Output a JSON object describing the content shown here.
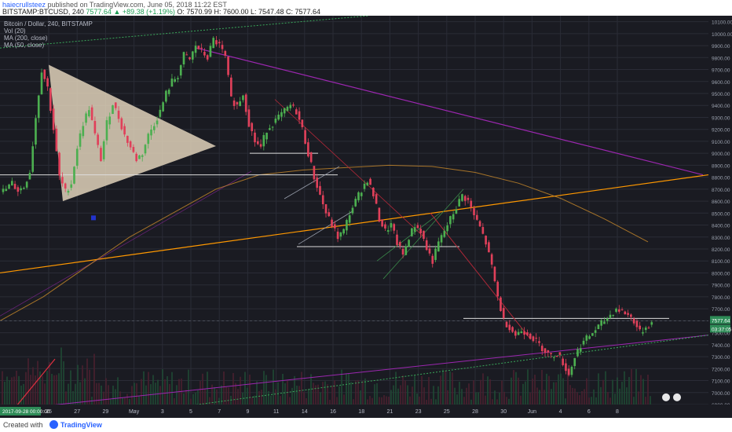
{
  "header": {
    "author": "haiecrullsteez",
    "published": " published on TradingView.com, June 05, 2018 11:22 EST",
    "symbol": "BITSTAMP:BTCUSD, 240",
    "last": "7577.64",
    "change": "▲ +89.38 (+1.19%)",
    "ohlc": "O: 7570.99 H: 7600.00 L: 7547.48 C: 7577.64"
  },
  "legend": {
    "title": "Bitcoin / Dollar, 240, BITSTAMP",
    "items": [
      "Vol (20)",
      "MA (200, close)",
      "MA (50, close)"
    ]
  },
  "footer": {
    "created": "Created with",
    "brand": "TradingView"
  },
  "price_tags": {
    "last": "7577.64",
    "timer": "03:37:05"
  },
  "time_tag": "2017-09-28 00:00:00",
  "colors": {
    "background": "#1a1b22",
    "up": "#4caf50",
    "down": "#e0405a",
    "ma200": "#c9892a",
    "trendline": "#ff9800",
    "purple": "#9c27b0",
    "green_dotted": "#3aa85a",
    "triangle": "#e8d9c0"
  },
  "chart_data": {
    "type": "candlestick",
    "title": "Bitcoin / Dollar, 240, BITSTAMP",
    "ylim": [
      6900,
      10150
    ],
    "y_ticks": [
      6900,
      7000,
      7100,
      7200,
      7300,
      7400,
      7500,
      7600,
      7700,
      7800,
      7900,
      8000,
      8100,
      8200,
      8300,
      8400,
      8500,
      8600,
      8700,
      8800,
      8900,
      9000,
      9100,
      9200,
      9300,
      9400,
      9500,
      9600,
      9700,
      9800,
      9900,
      10000,
      10100
    ],
    "x_ticks": [
      "25",
      "27",
      "29",
      "May",
      "3",
      "5",
      "7",
      "9",
      "11",
      "14",
      "16",
      "18",
      "21",
      "23",
      "25",
      "28",
      "30",
      "Jun",
      "4",
      "6",
      "8"
    ],
    "close_path": [
      8700,
      8750,
      8690,
      8720,
      8850,
      9300,
      9700,
      9550,
      9200,
      8800,
      8680,
      8750,
      9050,
      9250,
      9380,
      9150,
      8950,
      9250,
      9420,
      9300,
      9150,
      9050,
      8950,
      9000,
      9150,
      9250,
      9350,
      9500,
      9600,
      9650,
      9820,
      9780,
      9900,
      9850,
      9800,
      9950,
      9900,
      9800,
      9450,
      9400,
      9500,
      9250,
      9100,
      9050,
      9200,
      9250,
      9300,
      9350,
      9400,
      9350,
      9200,
      9000,
      8800,
      8650,
      8500,
      8400,
      8300,
      8350,
      8500,
      8600,
      8700,
      8780,
      8650,
      8450,
      8350,
      8400,
      8250,
      8150,
      8300,
      8400,
      8350,
      8200,
      8100,
      8250,
      8350,
      8450,
      8550,
      8650,
      8600,
      8480,
      8380,
      8250,
      8050,
      7800,
      7600,
      7550,
      7480,
      7520,
      7500,
      7450,
      7400,
      7350,
      7300,
      7330,
      7250,
      7150,
      7300,
      7400,
      7450,
      7500,
      7550,
      7600,
      7650,
      7700,
      7680,
      7650,
      7600,
      7500,
      7550,
      7578
    ],
    "horizontal_levels": [
      8820,
      9000,
      8220,
      7620
    ],
    "annotations": [
      "symmetrical triangle",
      "ascending channel",
      "descending trendline",
      "long-term support line"
    ],
    "moving_average_200": [
      7600,
      7800,
      8050,
      8300,
      8500,
      8700,
      8820,
      8860,
      8880,
      8900,
      8890,
      8840,
      8750,
      8620,
      8450,
      8260
    ],
    "legend_position": "top-left"
  }
}
